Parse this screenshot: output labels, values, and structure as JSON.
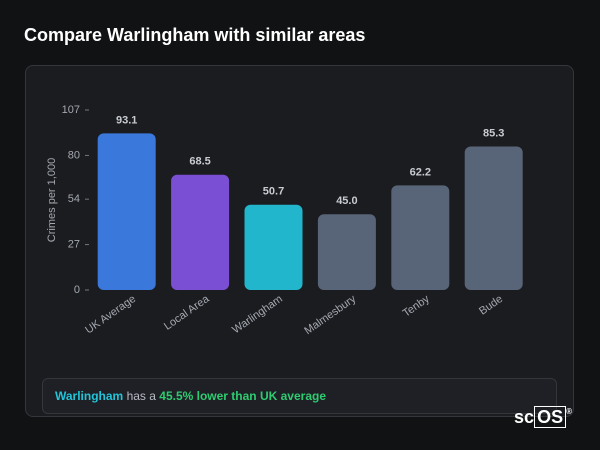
{
  "chart_data": {
    "type": "bar",
    "title": "Compare Warlingham with similar areas",
    "y_label": "Crimes per 1,000",
    "categories": [
      "UK Average",
      "Local Area",
      "Warlingham",
      "Malmesbury",
      "Tenby",
      "Bude"
    ],
    "values": [
      93.1,
      68.5,
      50.7,
      45.0,
      62.2,
      85.3
    ],
    "value_labels": [
      "93.1",
      "68.5",
      "50.7",
      "45.0",
      "62.2",
      "85.3"
    ],
    "colors": [
      "#3a78db",
      "#7a4fd4",
      "#22b6cc",
      "#586477",
      "#586477",
      "#586477"
    ],
    "ylim": [
      0,
      107
    ],
    "yticks": [
      0,
      27,
      54,
      80,
      107
    ],
    "grid": false
  },
  "footer": {
    "area": "Warlingham",
    "text": " has a ",
    "highlight": "45.5% lower than UK average"
  },
  "logo": {
    "prefix": "sc",
    "boxed": "OS",
    "mark": "®"
  }
}
